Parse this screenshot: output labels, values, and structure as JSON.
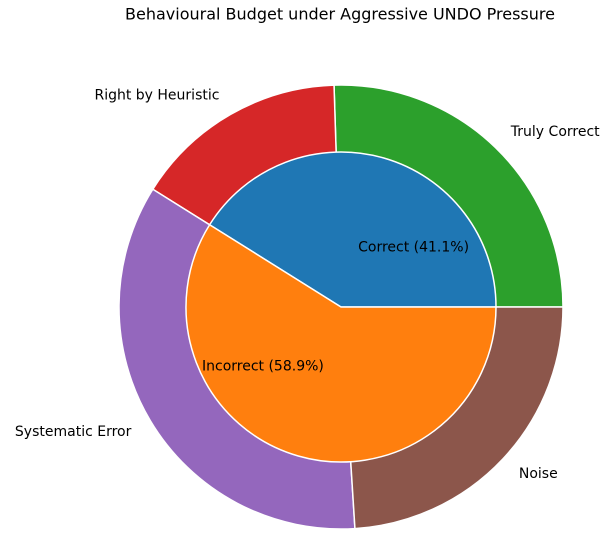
{
  "chart_data": {
    "type": "pie",
    "title": "Behavioural Budget under Aggressive UNDO Pressure",
    "inner": {
      "values": [
        41.1,
        58.9
      ],
      "value_labels": [
        "Correct (41.1%)",
        "Incorrect (58.9%)"
      ],
      "colors": [
        "#1f77b4",
        "#ff7f0e"
      ]
    },
    "outer": {
      "labels": [
        "Truly Correct",
        "Right by Heuristic",
        "Systematic Error",
        "Noise"
      ],
      "values": [
        25.5,
        15.6,
        34.9,
        24.0
      ],
      "colors": [
        "#2ca02c",
        "#d62728",
        "#9467bd",
        "#8c564b"
      ]
    }
  }
}
